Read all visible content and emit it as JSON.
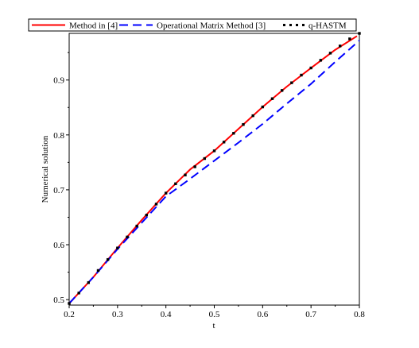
{
  "chart_data": {
    "type": "line",
    "title": "",
    "xlabel": "t",
    "ylabel": "Numerical solution",
    "xlim": [
      0.2,
      0.8
    ],
    "ylim": [
      0.49,
      0.985
    ],
    "xticks": [
      0.2,
      0.3,
      0.4,
      0.5,
      0.6,
      0.7,
      0.8
    ],
    "xtick_labels": [
      "0.2",
      "0.3",
      "0.4",
      "0.5",
      "0.6",
      "0.7",
      "0.8"
    ],
    "yticks": [
      0.5,
      0.6,
      0.7,
      0.8,
      0.9
    ],
    "ytick_labels": [
      "0.5",
      "0.6",
      "0.7",
      "0.8",
      "0.9"
    ],
    "grid": false,
    "legend": "top",
    "series": [
      {
        "name": "Method in [4]",
        "color": "#ff0000",
        "style": "solid",
        "x": [
          0.2,
          0.25,
          0.3,
          0.35,
          0.4,
          0.45,
          0.5,
          0.55,
          0.6,
          0.65,
          0.7,
          0.75,
          0.795
        ],
        "y": [
          0.493,
          0.541,
          0.594,
          0.645,
          0.694,
          0.737,
          0.771,
          0.811,
          0.851,
          0.888,
          0.922,
          0.955,
          0.98
        ]
      },
      {
        "name": "Operational Matrix Method [3]",
        "color": "#0000ff",
        "style": "dashed",
        "x": [
          0.2,
          0.25,
          0.3,
          0.35,
          0.4,
          0.45,
          0.5,
          0.55,
          0.6,
          0.65,
          0.7,
          0.75,
          0.8
        ],
        "y": [
          0.493,
          0.541,
          0.592,
          0.64,
          0.688,
          0.72,
          0.753,
          0.786,
          0.82,
          0.857,
          0.893,
          0.933,
          0.972
        ]
      },
      {
        "name": "q-HASTM",
        "color": "#000000",
        "style": "dotted",
        "x": [
          0.2,
          0.22,
          0.24,
          0.26,
          0.28,
          0.3,
          0.32,
          0.34,
          0.36,
          0.38,
          0.4,
          0.42,
          0.44,
          0.46,
          0.48,
          0.5,
          0.52,
          0.54,
          0.56,
          0.58,
          0.6,
          0.62,
          0.64,
          0.66,
          0.68,
          0.7,
          0.72,
          0.74,
          0.76,
          0.78,
          0.8
        ],
        "y": [
          0.493,
          0.512,
          0.531,
          0.553,
          0.573,
          0.594,
          0.614,
          0.634,
          0.654,
          0.674,
          0.694,
          0.711,
          0.727,
          0.742,
          0.757,
          0.771,
          0.787,
          0.803,
          0.819,
          0.835,
          0.851,
          0.866,
          0.881,
          0.895,
          0.909,
          0.922,
          0.936,
          0.949,
          0.962,
          0.975,
          0.985
        ]
      }
    ]
  }
}
